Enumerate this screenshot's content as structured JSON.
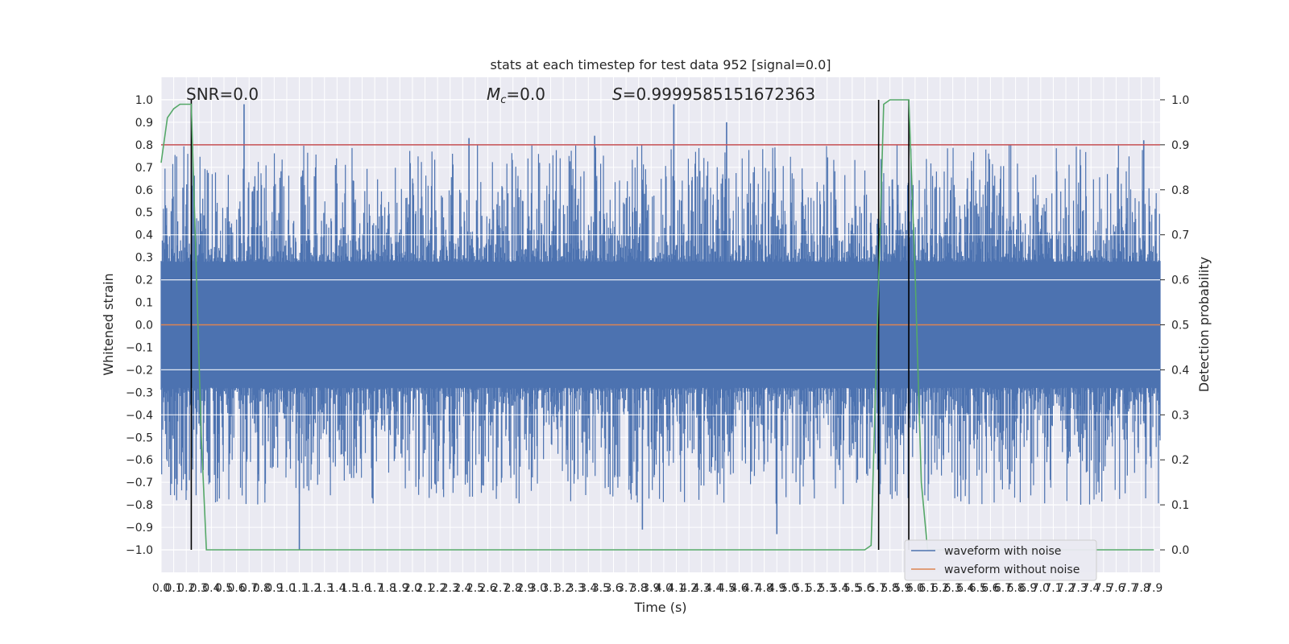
{
  "chart_data": {
    "type": "line",
    "title": "stats at each timestep for test data 952 [signal=0.0]",
    "xlabel": "Time (s)",
    "ylabel": "Whitened strain",
    "ylabel_right": "Detection probability",
    "xlim": [
      0.0,
      7.95
    ],
    "ylim": [
      -1.1,
      1.1
    ],
    "ylim_right": [
      -0.05,
      1.05
    ],
    "grid": true,
    "legend_placement": "lower-right",
    "x_ticks": [
      "0.0",
      "0.1",
      "0.2",
      "0.3",
      "0.4",
      "0.5",
      "0.6",
      "0.7",
      "0.8",
      "0.9",
      "1.0",
      "1.1",
      "1.2",
      "1.3",
      "1.4",
      "1.5",
      "1.6",
      "1.7",
      "1.8",
      "1.9",
      "2.0",
      "2.1",
      "2.2",
      "2.3",
      "2.4",
      "2.5",
      "2.6",
      "2.7",
      "2.8",
      "2.9",
      "3.0",
      "3.1",
      "3.2",
      "3.3",
      "3.4",
      "3.5",
      "3.6",
      "3.7",
      "3.8",
      "3.9",
      "4.0",
      "4.1",
      "4.2",
      "4.3",
      "4.4",
      "4.5",
      "4.6",
      "4.7",
      "4.8",
      "4.9",
      "5.0",
      "5.1",
      "5.2",
      "5.3",
      "5.4",
      "5.5",
      "5.6",
      "5.7",
      "5.8",
      "5.9",
      "6.0",
      "6.1",
      "6.2",
      "6.3",
      "6.4",
      "6.5",
      "6.6",
      "6.7",
      "6.8",
      "6.9",
      "7.0",
      "7.1",
      "7.2",
      "7.3",
      "7.4",
      "7.5",
      "7.6",
      "7.7",
      "7.8",
      "7.9"
    ],
    "y_ticks": [
      "1.0",
      "0.9",
      "0.8",
      "0.7",
      "0.6",
      "0.5",
      "0.4",
      "0.3",
      "0.2",
      "0.1",
      "0.0",
      "−0.1",
      "−0.2",
      "−0.3",
      "−0.4",
      "−0.5",
      "−0.6",
      "−0.7",
      "−0.8",
      "−0.9",
      "−1.0"
    ],
    "y_ticks_right": [
      "1.0",
      "0.9",
      "0.8",
      "0.7",
      "0.6",
      "0.5",
      "0.4",
      "0.3",
      "0.2",
      "0.1",
      "0.0"
    ],
    "annotations": {
      "snr": "SNR=0.0",
      "mc_symbol": "M",
      "mc_sub": "c",
      "mc_value": "=0.0",
      "s_symbol": "S",
      "s_value": "=0.9999585151672363"
    },
    "threshold_right": 0.9,
    "vlines_x": [
      0.24,
      5.71,
      5.95
    ],
    "series": [
      {
        "name": "waveform with noise",
        "color": "#4c72b0",
        "axis": "left",
        "envelope": "noise"
      },
      {
        "name": "waveform without noise",
        "color": "#dd8452",
        "axis": "left",
        "values_constant": 0.0
      },
      {
        "color": "#55a868",
        "axis": "right",
        "x": [
          0.0,
          0.05,
          0.1,
          0.15,
          0.2,
          0.24,
          0.28,
          0.32,
          0.36,
          0.4,
          1.0,
          2.0,
          3.0,
          4.0,
          5.0,
          5.6,
          5.65,
          5.7,
          5.75,
          5.8,
          5.85,
          5.9,
          5.95,
          6.0,
          6.05,
          6.1,
          6.2,
          7.0,
          7.9
        ],
        "values": [
          0.86,
          0.96,
          0.98,
          0.99,
          0.99,
          0.99,
          0.62,
          0.25,
          0.0,
          0.0,
          0.0,
          0.0,
          0.0,
          0.0,
          0.0,
          0.0,
          0.01,
          0.5,
          0.99,
          1.0,
          1.0,
          1.0,
          1.0,
          0.62,
          0.15,
          0.0,
          0.0,
          0.0,
          0.0
        ]
      },
      {
        "color": "#c44e52",
        "axis": "right",
        "values_constant": 0.9
      }
    ],
    "noise_spikes": [
      {
        "x": 0.66,
        "y": 0.98
      },
      {
        "x": 1.1,
        "y": -1.0
      },
      {
        "x": 2.45,
        "y": 0.83
      },
      {
        "x": 3.45,
        "y": 0.84
      },
      {
        "x": 3.83,
        "y": -0.91
      },
      {
        "x": 4.08,
        "y": 0.98
      },
      {
        "x": 4.5,
        "y": 0.9
      },
      {
        "x": 4.9,
        "y": -0.93
      },
      {
        "x": 7.82,
        "y": 0.82
      }
    ]
  }
}
